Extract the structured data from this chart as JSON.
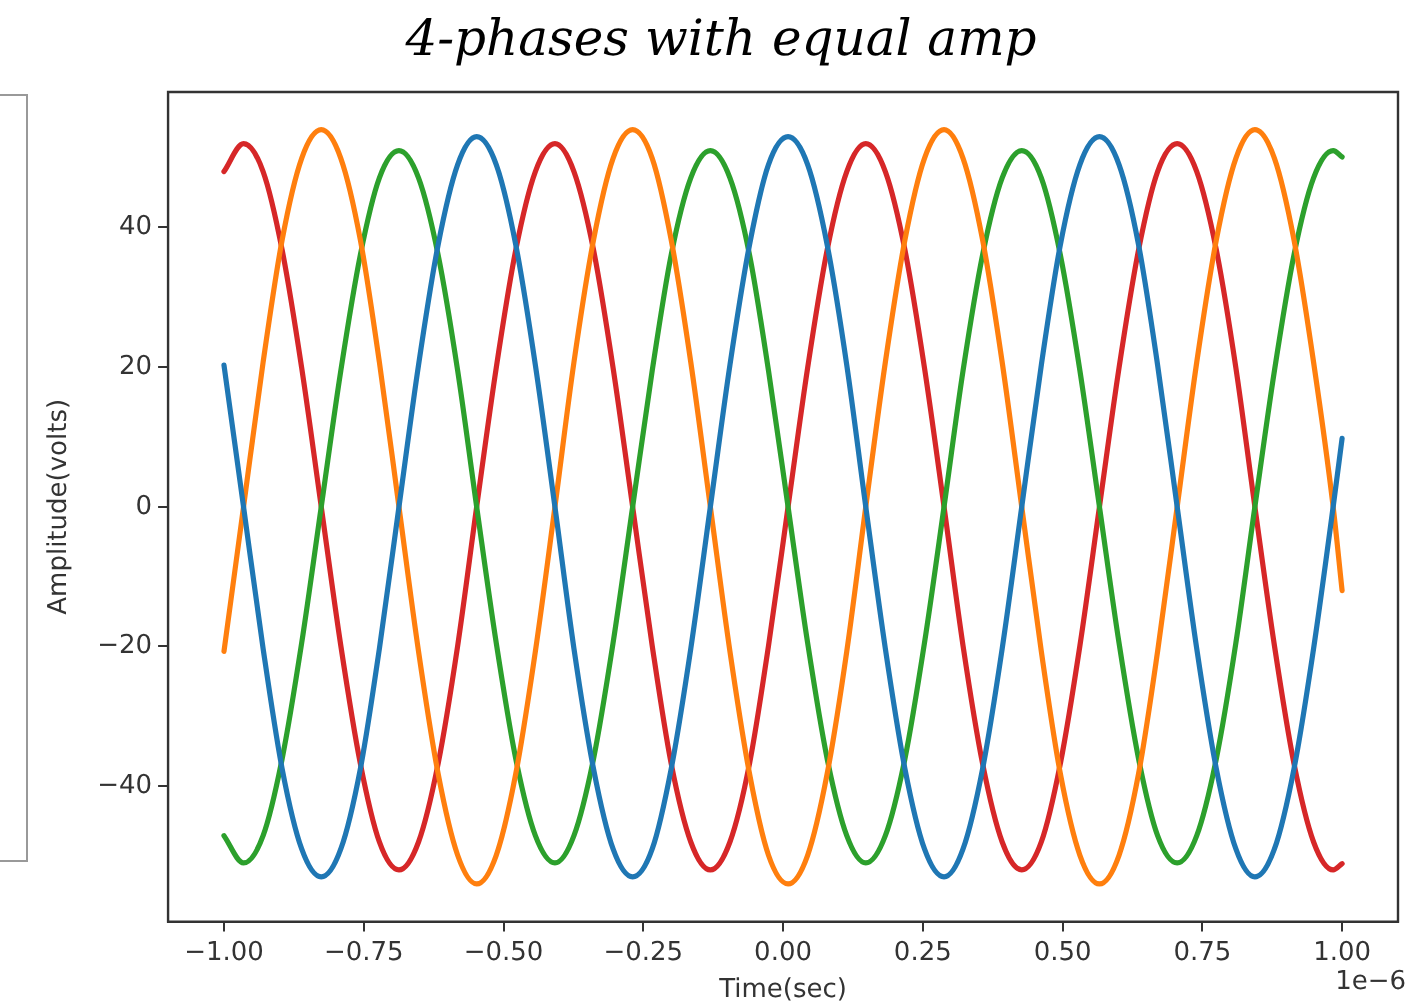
{
  "chart_data": {
    "type": "line",
    "title": "4-phases with equal amp",
    "xlabel": "Time(sec)",
    "ylabel": "Amplitude(volts)",
    "annotations": [
      "1e−6"
    ],
    "line_style": "solid",
    "marker": "none",
    "grid": false,
    "xlim": [
      -1.1,
      1.1
    ],
    "ylim": [
      -59.4,
      59.4
    ],
    "xticks": [
      {
        "value": -1,
        "label": "−1.00"
      },
      {
        "value": -0.75,
        "label": "−0.75"
      },
      {
        "value": -0.5,
        "label": "−0.50"
      },
      {
        "value": -0.25,
        "label": "−0.25"
      },
      {
        "value": 0,
        "label": "0.00"
      },
      {
        "value": 0.25,
        "label": "0.25"
      },
      {
        "value": 0.5,
        "label": "0.50"
      },
      {
        "value": 0.75,
        "label": "0.75"
      },
      {
        "value": 1,
        "label": "1.00"
      }
    ],
    "yticks": [
      {
        "value": -40,
        "label": "−40"
      },
      {
        "value": -20,
        "label": "−20"
      },
      0,
      20,
      40
    ],
    "x": [
      -1,
      -0.965,
      -0.93,
      -0.896,
      -0.861,
      -0.826,
      -0.791,
      -0.756,
      -0.722,
      -0.687,
      -0.652,
      -0.617,
      -0.582,
      -0.548,
      -0.513,
      -0.478,
      -0.443,
      -0.408,
      -0.374,
      -0.339,
      -0.304,
      -0.269,
      -0.234,
      -0.2,
      -0.165,
      -0.13,
      -0.095,
      -0.06,
      -0.026,
      0.009,
      0.044,
      0.079,
      0.114,
      0.148,
      0.183,
      0.218,
      0.253,
      0.288,
      0.322,
      0.357,
      0.392,
      0.427,
      0.462,
      0.496,
      0.531,
      0.566,
      0.601,
      0.636,
      0.67,
      0.705,
      0.74,
      0.775,
      0.81,
      0.844,
      0.879,
      0.914,
      0.949,
      0.984,
      1
    ],
    "series": [
      {
        "color": "#1f77b4",
        "values": [
          20.3,
          0,
          -20.3,
          -37.5,
          -49,
          -53,
          -49,
          -37.5,
          -20.3,
          0,
          20.3,
          37.5,
          49,
          53,
          49,
          37.5,
          20.3,
          0,
          -20.3,
          -37.5,
          -49,
          -53,
          -49,
          -37.5,
          -20.3,
          0,
          20.3,
          37.5,
          49,
          53,
          49,
          37.5,
          20.3,
          0,
          -20.3,
          -37.5,
          -49,
          -53,
          -49,
          -37.5,
          -20.3,
          0,
          20.3,
          37.5,
          49,
          53,
          49,
          37.5,
          20.3,
          0,
          -20.3,
          -37.5,
          -49,
          -53,
          -49,
          -37.5,
          -20.3,
          0,
          9.8
        ]
      },
      {
        "color": "#ff7f0e",
        "values": [
          -20.7,
          0,
          20.7,
          38.2,
          49.9,
          54,
          49.9,
          38.2,
          20.7,
          0,
          -20.7,
          -38.2,
          -49.9,
          -54,
          -49.9,
          -38.2,
          -20.7,
          0,
          20.7,
          38.2,
          49.9,
          54,
          49.9,
          38.2,
          20.7,
          0,
          -20.7,
          -38.2,
          -49.9,
          -54,
          -49.9,
          -38.2,
          -20.7,
          0,
          20.7,
          38.2,
          49.9,
          54,
          49.9,
          38.2,
          20.7,
          0,
          -20.7,
          -38.2,
          -49.9,
          -54,
          -49.9,
          -38.2,
          -20.7,
          0,
          20.7,
          38.2,
          49.9,
          54,
          49.9,
          38.2,
          20.7,
          0,
          -12
        ]
      },
      {
        "color": "#2ca02c",
        "values": [
          -47.1,
          -51,
          -47.1,
          -36.1,
          -19.5,
          0,
          19.5,
          36.1,
          47.1,
          51,
          47.1,
          36.1,
          19.5,
          0,
          -19.5,
          -36.1,
          -47.1,
          -51,
          -47.1,
          -36.1,
          -19.5,
          0,
          19.5,
          36.1,
          47.1,
          51,
          47.1,
          36.1,
          19.5,
          0,
          -19.5,
          -36.1,
          -47.1,
          -51,
          -47.1,
          -36.1,
          -19.5,
          0,
          19.5,
          36.1,
          47.1,
          51,
          47.1,
          36.1,
          19.5,
          0,
          -19.5,
          -36.1,
          -47.1,
          -51,
          -47.1,
          -36.1,
          -19.5,
          0,
          19.5,
          36.1,
          47.1,
          51,
          50.1
        ]
      },
      {
        "color": "#d62728",
        "values": [
          48,
          52,
          48,
          36.8,
          19.9,
          0,
          -19.9,
          -36.8,
          -48,
          -52,
          -48,
          -36.8,
          -19.9,
          0,
          19.9,
          36.8,
          48,
          52,
          48,
          36.8,
          19.9,
          0,
          -19.9,
          -36.8,
          -48,
          -52,
          -48,
          -36.8,
          -19.9,
          0,
          19.9,
          36.8,
          48,
          52,
          48,
          36.8,
          19.9,
          0,
          -19.9,
          -36.8,
          -48,
          -52,
          -48,
          -36.8,
          -19.9,
          0,
          19.9,
          36.8,
          48,
          52,
          48,
          36.8,
          19.9,
          0,
          -19.9,
          -36.8,
          -48,
          -52,
          -51.1
        ]
      }
    ]
  }
}
